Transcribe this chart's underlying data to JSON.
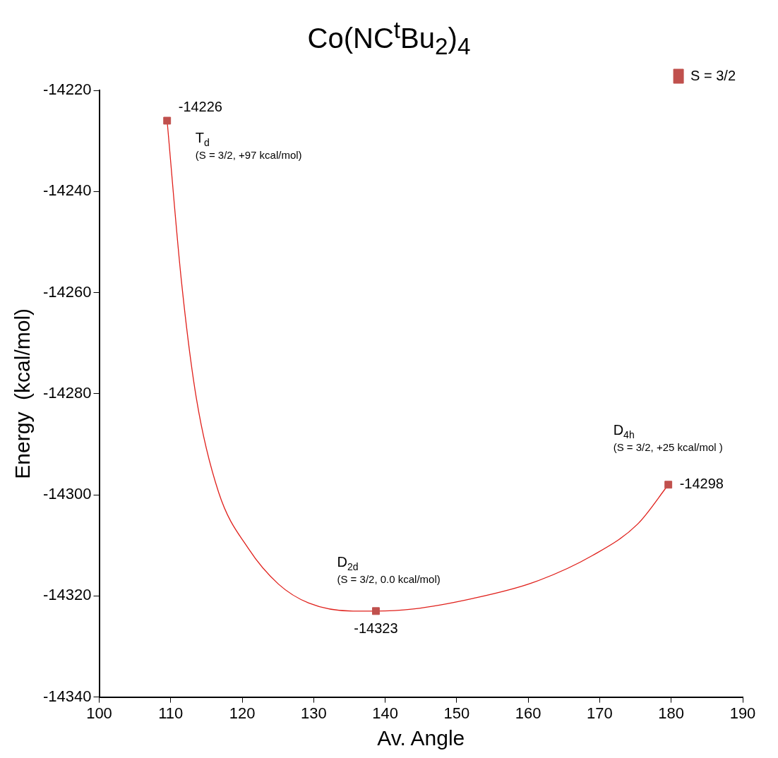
{
  "chart_data": {
    "type": "scatter",
    "title": "Co(NC$^{t}$Bu$_{2}$)$_{4}$",
    "xlabel": "Av. Angle",
    "ylabel": "Energy  (kcal/mol)",
    "xlim": [
      100,
      190
    ],
    "xticks": [
      100,
      110,
      120,
      130,
      140,
      150,
      160,
      170,
      180,
      190
    ],
    "ylim": [
      -14340,
      -14220
    ],
    "yticks": [
      -14340,
      -14320,
      -14300,
      -14280,
      -14260,
      -14240,
      -14220
    ],
    "grid": false,
    "legend": "top right",
    "marker": "square",
    "series": [
      {
        "name": "S = 3/2",
        "color": "#c0504d",
        "x": [
          109.5,
          138.7,
          179.6
        ],
        "values": [
          -14226,
          -14323,
          -14298
        ],
        "value_labels": [
          "-14226",
          "-14323",
          "-14298"
        ]
      },
      {
        "type": "line",
        "color": "#e0201b",
        "marker": "none",
        "x": [
          109.5,
          111.5,
          113.6,
          116.7,
          120.9,
          125.1,
          129.3,
          135.5,
          138.5,
          143.9,
          152.3,
          160.6,
          169,
          175.3,
          179.6
        ],
        "values": [
          -14226,
          -14257.7,
          -14281,
          -14299.5,
          -14310.7,
          -14317.7,
          -14321.4,
          -14323,
          -14323,
          -14322.6,
          -14320.5,
          -14317.4,
          -14312,
          -14305.8,
          -14298
        ]
      }
    ],
    "annotations": [
      "T$_{d}$",
      "(S = 3/2, +97 kcal/mol)",
      "D$_{2d}$",
      "(S = 3/2, 0.0 kcal/mol)",
      "D$_{4h}$",
      "(S = 3/2, +25 kcal/mol )"
    ]
  }
}
